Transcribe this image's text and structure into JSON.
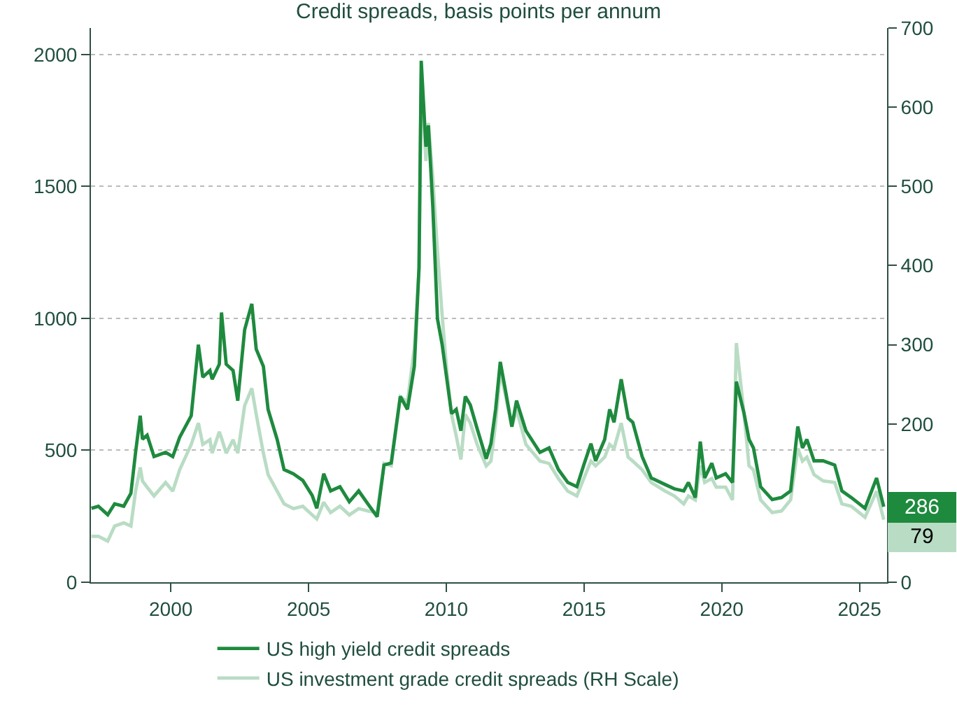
{
  "chart_data": {
    "type": "line",
    "title": "Credit spreads, basis points per annum",
    "x": [
      1997.12,
      1997.37,
      1997.71,
      1997.96,
      1998.29,
      1998.55,
      1998.72,
      1998.89,
      1998.97,
      1999.14,
      1999.39,
      1999.81,
      2000.07,
      2000.32,
      2000.74,
      2001.0,
      2001.16,
      2001.42,
      2001.5,
      2001.76,
      2001.84,
      2002.01,
      2002.26,
      2002.43,
      2002.68,
      2002.94,
      2003.1,
      2003.36,
      2003.53,
      2003.86,
      2004.11,
      2004.45,
      2004.79,
      2005.13,
      2005.3,
      2005.55,
      2005.8,
      2006.14,
      2006.48,
      2006.82,
      2007.15,
      2007.49,
      2007.74,
      2008.0,
      2008.33,
      2008.59,
      2008.84,
      2009.01,
      2009.09,
      2009.26,
      2009.35,
      2009.51,
      2009.68,
      2009.85,
      2010.02,
      2010.19,
      2010.36,
      2010.53,
      2010.69,
      2010.87,
      2011.12,
      2011.45,
      2011.62,
      2011.79,
      2011.96,
      2012.13,
      2012.38,
      2012.55,
      2012.89,
      2013.4,
      2013.73,
      2014.07,
      2014.41,
      2014.74,
      2014.99,
      2015.25,
      2015.42,
      2015.75,
      2015.93,
      2016.09,
      2016.35,
      2016.6,
      2016.77,
      2017.11,
      2017.44,
      2017.95,
      2018.28,
      2018.62,
      2018.79,
      2019.04,
      2019.22,
      2019.38,
      2019.64,
      2019.8,
      2020.14,
      2020.39,
      2020.53,
      2020.81,
      2020.99,
      2021.15,
      2021.41,
      2021.83,
      2022.17,
      2022.5,
      2022.76,
      2022.93,
      2023.09,
      2023.35,
      2023.68,
      2024.1,
      2024.36,
      2024.7,
      2025.2,
      2025.62,
      2025.88
    ],
    "series": [
      {
        "name": "US high yield credit spreads",
        "color": "#1e8a3e",
        "values": [
          280,
          288,
          256,
          297,
          288,
          337,
          492,
          631,
          542,
          557,
          476,
          492,
          476,
          549,
          631,
          900,
          777,
          802,
          769,
          826,
          1022,
          826,
          802,
          688,
          957,
          1055,
          883,
          818,
          655,
          541,
          427,
          411,
          386,
          329,
          280,
          411,
          346,
          362,
          305,
          346,
          297,
          248,
          444,
          452,
          704,
          655,
          818,
          1193,
          1976,
          1650,
          1731,
          1423,
          998,
          900,
          769,
          639,
          655,
          574,
          704,
          672,
          582,
          468,
          525,
          655,
          835,
          737,
          590,
          688,
          574,
          492,
          509,
          427,
          378,
          362,
          444,
          525,
          460,
          541,
          655,
          606,
          769,
          622,
          606,
          476,
          395,
          370,
          354,
          346,
          378,
          321,
          533,
          395,
          451,
          395,
          411,
          378,
          760,
          639,
          541,
          509,
          362,
          313,
          321,
          346,
          590,
          509,
          541,
          460,
          460,
          444,
          346,
          321,
          280,
          395,
          286
        ],
        "value_labels": [
          null,
          null,
          null,
          null,
          null,
          null,
          null,
          null,
          null,
          null,
          null,
          null,
          null,
          null,
          null,
          null,
          null,
          null,
          null,
          null,
          null,
          null,
          null,
          null,
          null,
          null,
          null,
          null,
          null,
          null,
          null,
          null,
          null,
          null,
          null,
          null,
          null,
          null,
          null,
          null,
          null,
          null,
          null,
          null,
          null,
          null,
          null,
          null,
          null,
          null,
          null,
          null,
          null,
          null,
          null,
          null,
          null,
          null,
          null,
          null,
          null,
          null,
          null,
          null,
          null,
          null,
          null,
          null,
          null,
          null,
          null,
          null,
          null,
          null,
          null,
          null,
          null,
          null,
          null,
          null,
          null,
          null,
          null,
          null,
          null,
          null,
          null,
          null,
          null,
          null,
          null,
          null,
          null,
          null,
          null,
          null,
          null,
          null,
          null,
          null,
          null,
          null,
          null,
          null,
          null,
          null,
          null,
          null,
          null,
          null,
          null,
          null,
          null,
          null,
          "286"
        ]
      },
      {
        "name": "US investment grade credit spreads (RH Scale)",
        "color": "#b9dcc4",
        "axis": "y2",
        "values": [
          58,
          58,
          52,
          71,
          75,
          71,
          115,
          145,
          128,
          120,
          109,
          126,
          115,
          142,
          174,
          201,
          174,
          180,
          163,
          190,
          182,
          163,
          180,
          163,
          223,
          245,
          212,
          163,
          136,
          115,
          99,
          93,
          96,
          85,
          80,
          101,
          88,
          96,
          85,
          93,
          90,
          88,
          150,
          147,
          234,
          228,
          296,
          396,
          643,
          532,
          580,
          510,
          418,
          337,
          266,
          212,
          185,
          155,
          212,
          201,
          174,
          147,
          153,
          201,
          266,
          239,
          196,
          218,
          174,
          153,
          150,
          131,
          115,
          109,
          131,
          153,
          147,
          158,
          174,
          169,
          201,
          158,
          153,
          142,
          126,
          115,
          109,
          99,
          109,
          104,
          147,
          126,
          131,
          120,
          120,
          104,
          302,
          212,
          147,
          142,
          104,
          88,
          90,
          104,
          169,
          153,
          158,
          136,
          128,
          126,
          99,
          96,
          82,
          115,
          79
        ],
        "value_labels": [
          null,
          null,
          null,
          null,
          null,
          null,
          null,
          null,
          null,
          null,
          null,
          null,
          null,
          null,
          null,
          null,
          null,
          null,
          null,
          null,
          null,
          null,
          null,
          null,
          null,
          null,
          null,
          null,
          null,
          null,
          null,
          null,
          null,
          null,
          null,
          null,
          null,
          null,
          null,
          null,
          null,
          null,
          null,
          null,
          null,
          null,
          null,
          null,
          null,
          null,
          null,
          null,
          null,
          null,
          null,
          null,
          null,
          null,
          null,
          null,
          null,
          null,
          null,
          null,
          null,
          null,
          null,
          null,
          null,
          null,
          null,
          null,
          null,
          null,
          null,
          null,
          null,
          null,
          null,
          null,
          null,
          null,
          null,
          null,
          null,
          null,
          null,
          null,
          null,
          null,
          null,
          null,
          null,
          null,
          null,
          null,
          null,
          null,
          null,
          null,
          null,
          null,
          null,
          null,
          null,
          null,
          null,
          null,
          null,
          null,
          null,
          null,
          null,
          null,
          "79"
        ]
      }
    ],
    "xlim": [
      1997.1,
      2026.0
    ],
    "xticks": [
      2000,
      2005,
      2010,
      2015,
      2020,
      2025
    ],
    "ylim": [
      0,
      2100
    ],
    "yticks": [
      0,
      500,
      1000,
      1500,
      2000
    ],
    "y2lim": [
      0,
      700
    ],
    "y2ticks": [
      0,
      {
        "value": 100,
        "label": null
      },
      200,
      300,
      400,
      500,
      600,
      700
    ],
    "grid": "y",
    "legend": "bottom",
    "marker": "none",
    "line_style": "solid"
  }
}
